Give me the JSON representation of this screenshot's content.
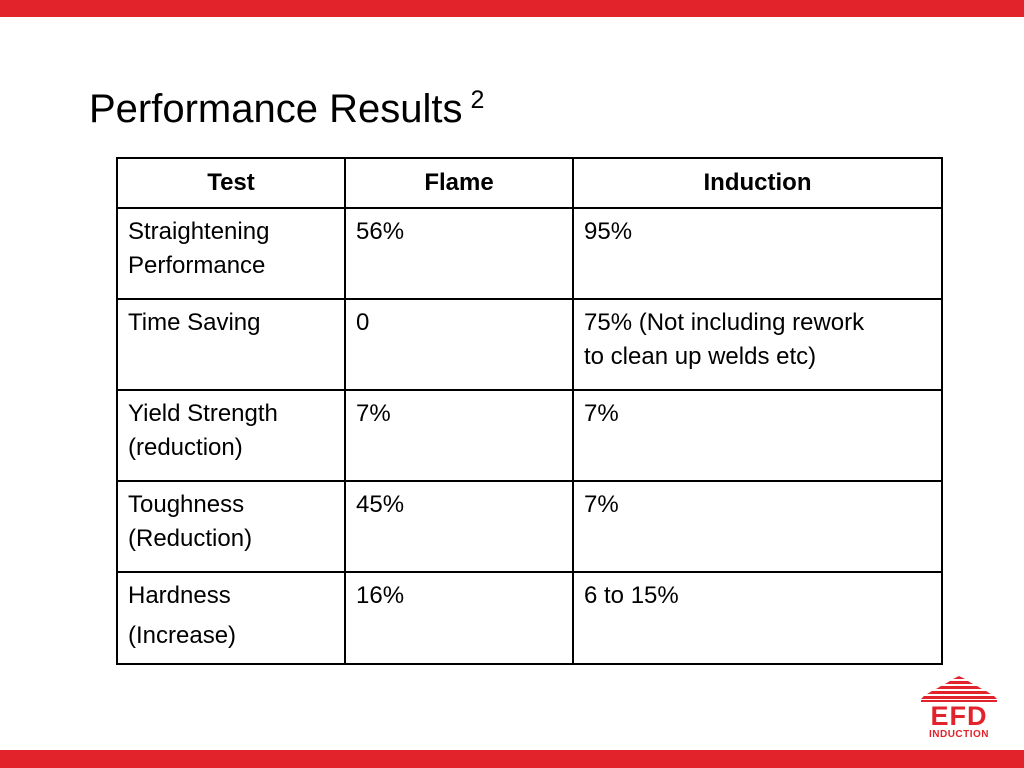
{
  "slide": {
    "title": "Performance Results",
    "title_superscript": "2"
  },
  "table": {
    "headers": [
      "Test",
      "Flame",
      "Induction"
    ],
    "rows": [
      {
        "test_line1": "Straightening",
        "test_line2": "Performance",
        "flame": "56%",
        "induction_line1": "95%",
        "induction_line2": ""
      },
      {
        "test_line1": "Time Saving",
        "test_line2": "",
        "flame": "0",
        "induction_line1": "75% (Not including rework",
        "induction_line2": "to clean up welds etc)"
      },
      {
        "test_line1": "Yield Strength",
        "test_line2": "(reduction)",
        "flame": "7%",
        "induction_line1": "7%",
        "induction_line2": ""
      },
      {
        "test_line1": "Toughness",
        "test_line2": "(Reduction)",
        "flame": "45%",
        "induction_line1": "7%",
        "induction_line2": ""
      },
      {
        "test_line1": "Hardness",
        "test_line2": "(Increase)",
        "flame": "16%",
        "induction_line1": "6 to 15%",
        "induction_line2": ""
      }
    ]
  },
  "logo": {
    "name": "EFD",
    "sub": "INDUCTION",
    "color": "#e3232b"
  },
  "colors": {
    "accent_bar": "#e3232b"
  }
}
